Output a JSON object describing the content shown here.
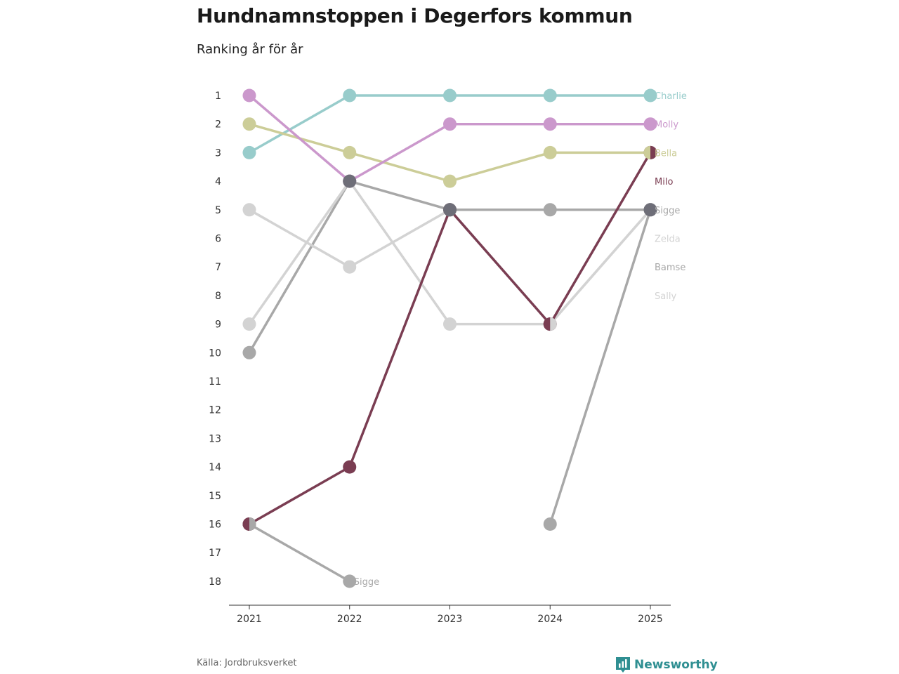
{
  "header": {
    "title": "Hundnamnstoppen i Degerfors kommun",
    "subtitle": "Ranking år för år"
  },
  "footer": {
    "source": "Källa: Jordbruksverket",
    "brand": "Newsworthy",
    "brand_color": "#2f8f92"
  },
  "chart_data": {
    "type": "line",
    "title": "Hundnamnstoppen i Degerfors kommun",
    "subtitle": "Ranking år för år",
    "x": [
      "2021",
      "2022",
      "2023",
      "2024",
      "2025"
    ],
    "y_ticks": [
      1,
      2,
      3,
      4,
      5,
      6,
      7,
      8,
      9,
      10,
      11,
      12,
      13,
      14,
      15,
      16,
      17,
      18
    ],
    "y_range": [
      1,
      18
    ],
    "y_reversed": true,
    "grid": false,
    "series": [
      {
        "name": "Bamse",
        "color": "#a8a8a8",
        "values": [
          10,
          4,
          5,
          5,
          5
        ]
      },
      {
        "name": "Sigge",
        "color": "#a8a8a8",
        "values": [
          16,
          18,
          null,
          16,
          5
        ]
      },
      {
        "name": "Zelda",
        "color": "#d3d3d3",
        "values": [
          5,
          7,
          5,
          9,
          5
        ]
      },
      {
        "name": "Sally",
        "color": "#d3d3d3",
        "values": [
          9,
          4,
          9,
          9,
          5
        ]
      },
      {
        "name": "Charlie",
        "color": "#98cccb",
        "values": [
          3,
          1,
          1,
          1,
          1
        ]
      },
      {
        "name": "Bella",
        "color": "#cccd98",
        "values": [
          2,
          3,
          4,
          3,
          3
        ]
      },
      {
        "name": "Molly",
        "color": "#cb98cc",
        "values": [
          1,
          4,
          2,
          2,
          2
        ]
      },
      {
        "name": "Milo",
        "color": "#7a3d52",
        "values": [
          16,
          14,
          5,
          9,
          3
        ]
      }
    ],
    "dark_markers": [
      {
        "x": "2022",
        "y": 4,
        "color": "#6e6e78"
      },
      {
        "x": "2023",
        "y": 5,
        "color": "#6e6e78"
      },
      {
        "x": "2025",
        "y": 5,
        "color": "#6e6e78"
      }
    ],
    "end_labels": [
      {
        "text": "Charlie",
        "y": 1,
        "color": "#98cccb"
      },
      {
        "text": "Molly",
        "y": 2,
        "color": "#cb98cc"
      },
      {
        "text": "Bella",
        "y": 3,
        "color": "#cccd98"
      },
      {
        "text": "Milo",
        "y": 4,
        "color": "#7a3d52"
      },
      {
        "text": "Sigge",
        "y": 5,
        "color": "#a8a8a8"
      },
      {
        "text": "Zelda",
        "y": 6,
        "color": "#d3d3d3"
      },
      {
        "text": "Bamse",
        "y": 7,
        "color": "#a8a8a8"
      },
      {
        "text": "Sally",
        "y": 8,
        "color": "#d3d3d3"
      }
    ],
    "annotations": [
      {
        "text": "Sigge",
        "x": "2022",
        "y": 18,
        "color": "#a8a8a8"
      }
    ]
  }
}
